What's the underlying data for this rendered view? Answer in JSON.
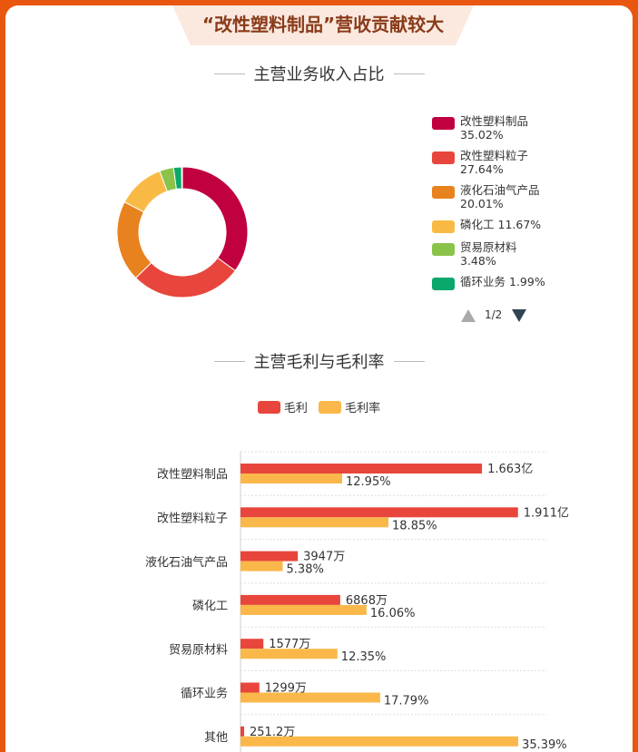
{
  "banner": {
    "title": "“改性塑料制品”营收贡献较大"
  },
  "section1": {
    "title": "主营业务收入占比"
  },
  "section2": {
    "title": "主营毛利与毛利率"
  },
  "colors": {
    "pie": [
      "#c1003f",
      "#e8463c",
      "#e8821e",
      "#f9ba45",
      "#8bc34a",
      "#0aa86a",
      "#1fb3c9"
    ],
    "gross": "#e8463c",
    "rate": "#fbb84a",
    "page_bg": "#e8560f"
  },
  "legend": {
    "items": [
      {
        "name": "改性塑料制品",
        "pct": "35.02%"
      },
      {
        "name": "改性塑料粒子",
        "pct": "27.64%"
      },
      {
        "name": "液化石油气产品",
        "pct": "20.01%"
      },
      {
        "name": "磷化工",
        "pct": "11.67%"
      },
      {
        "name": "贸易原材料",
        "pct": "3.48%"
      },
      {
        "name": "循环业务",
        "pct": "1.99%"
      }
    ],
    "page": "1/2"
  },
  "bar_legend": {
    "gross": "毛利",
    "rate": "毛利率"
  },
  "chart_data": [
    {
      "type": "pie",
      "categories": [
        "改性塑料制品",
        "改性塑料粒子",
        "液化石油气产品",
        "磷化工",
        "贸易原材料",
        "循环业务",
        "其他"
      ],
      "values": [
        35.02,
        27.64,
        20.01,
        11.67,
        3.48,
        1.99,
        0.19
      ]
    },
    {
      "type": "bar",
      "orientation": "horizontal",
      "categories": [
        "改性塑料制品",
        "改性塑料粒子",
        "液化石油气产品",
        "磷化工",
        "贸易原材料",
        "循环业务",
        "其他"
      ],
      "series": [
        {
          "name": "毛利",
          "values": [
            16630,
            19110,
            3947,
            6868,
            1577,
            1299,
            251.2
          ],
          "labels": [
            "1.663亿",
            "1.911亿",
            "3947万",
            "6868万",
            "1577万",
            "1299万",
            "251.2万"
          ]
        },
        {
          "name": "毛利率",
          "values": [
            12.95,
            18.85,
            5.38,
            16.06,
            12.35,
            17.79,
            35.39
          ],
          "labels": [
            "12.95%",
            "18.85%",
            "5.38%",
            "16.06%",
            "12.35%",
            "17.79%",
            "35.39%"
          ]
        }
      ],
      "xlim_gross": [
        0,
        20000
      ],
      "xlim_rate": [
        0,
        37
      ],
      "grid": true
    }
  ]
}
